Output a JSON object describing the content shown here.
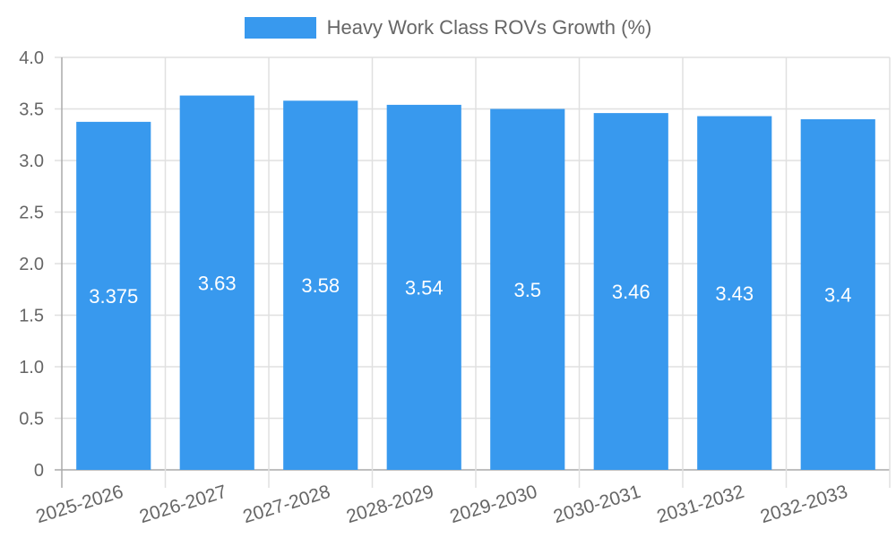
{
  "chart_data": {
    "type": "bar",
    "title": "",
    "legend": [
      "Heavy Work Class ROVs Growth (%)"
    ],
    "legend_position": "top",
    "categories": [
      "2025-2026",
      "2026-2027",
      "2027-2028",
      "2028-2029",
      "2029-2030",
      "2030-2031",
      "2031-2032",
      "2032-2033"
    ],
    "series": [
      {
        "name": "Heavy Work Class ROVs Growth (%)",
        "values": [
          3.375,
          3.63,
          3.58,
          3.54,
          3.5,
          3.46,
          3.43,
          3.4
        ],
        "color": "#3899ee"
      }
    ],
    "data_labels": [
      "3.375",
      "3.63",
      "3.58",
      "3.54",
      "3.5",
      "3.46",
      "3.43",
      "3.4"
    ],
    "xlabel": "",
    "ylabel": "",
    "ylim": [
      0,
      4.0
    ],
    "yticks": [
      "0",
      "0.5",
      "1.0",
      "1.5",
      "2.0",
      "2.5",
      "3.0",
      "3.5",
      "4.0"
    ],
    "grid": true
  },
  "legend": {
    "label": "Heavy Work Class ROVs Growth (%)"
  }
}
